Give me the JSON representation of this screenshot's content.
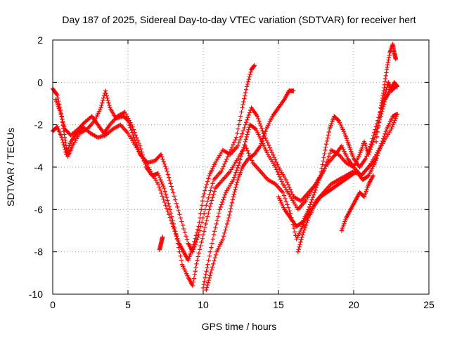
{
  "chart_data": {
    "type": "scatter",
    "title": "Day 187 of 2025, Sidereal Day-to-day VTEC variation (SDTVAR) for receiver hert",
    "xlabel": "GPS time / hours",
    "ylabel": "SDTVAR / TECUs",
    "xlim": [
      0,
      25
    ],
    "ylim": [
      -10,
      2
    ],
    "xticks": [
      0,
      5,
      10,
      15,
      20,
      25
    ],
    "yticks": [
      2,
      0,
      -2,
      -4,
      -6,
      -8,
      -10
    ],
    "grid": true,
    "marker": "+",
    "color": "#ff0000",
    "series": [
      {
        "points": [
          [
            0.0,
            -2.3
          ],
          [
            0.3,
            -2.1
          ],
          [
            0.6,
            -2.6
          ],
          [
            0.9,
            -3.4
          ],
          [
            1.2,
            -2.8
          ],
          [
            1.6,
            -2.4
          ],
          [
            2.0,
            -2.1
          ],
          [
            2.5,
            -2.4
          ],
          [
            3.0,
            -2.6
          ],
          [
            3.5,
            -2.5
          ],
          [
            4.0,
            -2.2
          ],
          [
            4.5,
            -2.0
          ],
          [
            5.0,
            -2.4
          ],
          [
            5.5,
            -3.0
          ],
          [
            6.0,
            -3.6
          ],
          [
            6.5,
            -4.2
          ],
          [
            7.0,
            -4.8
          ],
          [
            7.5,
            -5.8
          ],
          [
            8.0,
            -6.8
          ],
          [
            8.4,
            -7.6
          ],
          [
            8.7,
            -8.0
          ],
          [
            9.0,
            -8.4
          ],
          [
            9.3,
            -7.8
          ],
          [
            9.7,
            -6.8
          ],
          [
            10.0,
            -5.4
          ],
          [
            10.4,
            -4.4
          ],
          [
            10.8,
            -3.8
          ],
          [
            11.3,
            -3.2
          ],
          [
            11.8,
            -3.4
          ],
          [
            12.3,
            -3.0
          ],
          [
            12.8,
            -2.0
          ],
          [
            13.2,
            -1.2
          ],
          [
            13.6,
            -1.6
          ],
          [
            14.0,
            -2.4
          ],
          [
            14.5,
            -3.2
          ],
          [
            15.0,
            -4.0
          ],
          [
            15.5,
            -4.6
          ],
          [
            16.0,
            -5.4
          ],
          [
            16.5,
            -5.6
          ],
          [
            17.0,
            -5.2
          ],
          [
            17.5,
            -4.8
          ],
          [
            18.0,
            -4.2
          ],
          [
            18.5,
            -3.2
          ],
          [
            19.0,
            -3.4
          ],
          [
            19.5,
            -3.8
          ],
          [
            20.0,
            -4.0
          ],
          [
            20.5,
            -4.4
          ],
          [
            21.0,
            -4.0
          ],
          [
            21.5,
            -3.4
          ],
          [
            22.0,
            -2.8
          ],
          [
            22.5,
            -2.2
          ],
          [
            22.9,
            -1.5
          ]
        ]
      },
      {
        "points": [
          [
            0.0,
            -0.3
          ],
          [
            0.3,
            -0.6
          ],
          [
            0.6,
            -1.6
          ],
          [
            0.8,
            -2.6
          ],
          [
            1.0,
            -3.5
          ],
          [
            1.3,
            -3.0
          ],
          [
            1.8,
            -2.4
          ],
          [
            2.3,
            -2.2
          ],
          [
            2.8,
            -1.8
          ],
          [
            3.2,
            -1.2
          ],
          [
            3.5,
            -0.4
          ],
          [
            3.8,
            -1.2
          ],
          [
            4.2,
            -1.7
          ],
          [
            4.7,
            -1.6
          ],
          [
            5.0,
            -1.8
          ],
          [
            5.4,
            -2.6
          ],
          [
            5.8,
            -3.4
          ],
          [
            6.3,
            -3.8
          ],
          [
            6.8,
            -3.7
          ],
          [
            7.2,
            -3.4
          ],
          [
            7.6,
            -4.2
          ],
          [
            8.0,
            -5.2
          ],
          [
            8.5,
            -6.4
          ],
          [
            9.0,
            -7.6
          ],
          [
            9.3,
            -8.0
          ],
          [
            9.7,
            -7.2
          ],
          [
            10.2,
            -5.8
          ],
          [
            10.7,
            -4.6
          ],
          [
            11.2,
            -4.2
          ],
          [
            11.7,
            -3.4
          ],
          [
            12.2,
            -2.6
          ],
          [
            12.6,
            -1.2
          ],
          [
            12.9,
            -0.2
          ],
          [
            13.2,
            0.6
          ],
          [
            13.4,
            0.8
          ]
        ]
      },
      {
        "points": [
          [
            15.0,
            -5.4
          ],
          [
            15.4,
            -6.0
          ],
          [
            15.8,
            -6.4
          ],
          [
            16.2,
            -6.8
          ],
          [
            16.6,
            -6.6
          ],
          [
            17.0,
            -6.0
          ],
          [
            17.4,
            -5.2
          ],
          [
            17.8,
            -4.4
          ],
          [
            18.1,
            -3.2
          ],
          [
            18.4,
            -2.2
          ],
          [
            18.7,
            -1.6
          ],
          [
            19.0,
            -1.8
          ],
          [
            19.4,
            -2.4
          ],
          [
            19.7,
            -3.0
          ],
          [
            20.0,
            -3.6
          ],
          [
            20.4,
            -4.0
          ],
          [
            20.8,
            -3.6
          ],
          [
            21.2,
            -2.8
          ],
          [
            21.6,
            -1.8
          ],
          [
            22.0,
            -0.8
          ],
          [
            22.3,
            0.0
          ],
          [
            22.5,
            -0.4
          ],
          [
            22.8,
            -0.2
          ]
        ]
      },
      {
        "points": [
          [
            0.2,
            -0.8
          ],
          [
            0.5,
            -1.4
          ],
          [
            0.8,
            -2.2
          ],
          [
            1.2,
            -2.5
          ],
          [
            1.7,
            -2.2
          ],
          [
            2.1,
            -1.9
          ],
          [
            2.6,
            -1.6
          ],
          [
            3.0,
            -2.0
          ],
          [
            3.4,
            -2.4
          ],
          [
            3.8,
            -2.0
          ],
          [
            4.3,
            -1.6
          ],
          [
            4.8,
            -1.4
          ],
          [
            5.3,
            -2.1
          ],
          [
            5.8,
            -3.0
          ],
          [
            6.2,
            -4.0
          ],
          [
            6.6,
            -4.4
          ],
          [
            7.0,
            -4.3
          ],
          [
            7.4,
            -5.0
          ],
          [
            7.8,
            -6.0
          ],
          [
            8.2,
            -7.2
          ],
          [
            8.6,
            -8.6
          ],
          [
            9.0,
            -9.2
          ],
          [
            9.3,
            -9.6
          ],
          [
            9.6,
            -8.4
          ],
          [
            10.0,
            -7.2
          ],
          [
            10.4,
            -6.0
          ],
          [
            10.8,
            -5.0
          ],
          [
            11.3,
            -4.6
          ],
          [
            11.8,
            -4.2
          ],
          [
            12.3,
            -3.6
          ],
          [
            12.8,
            -3.0
          ],
          [
            13.3,
            -3.8
          ],
          [
            13.8,
            -4.2
          ],
          [
            14.3,
            -4.6
          ],
          [
            14.8,
            -4.8
          ],
          [
            15.3,
            -5.2
          ],
          [
            15.8,
            -6.2
          ],
          [
            16.2,
            -7.4
          ],
          [
            16.6,
            -6.8
          ],
          [
            17.0,
            -6.2
          ],
          [
            17.5,
            -5.6
          ],
          [
            18.0,
            -5.2
          ],
          [
            18.5,
            -4.8
          ],
          [
            19.0,
            -4.6
          ],
          [
            19.5,
            -4.4
          ],
          [
            20.0,
            -4.2
          ],
          [
            20.5,
            -4.4
          ],
          [
            21.0,
            -4.0
          ],
          [
            21.5,
            -3.6
          ]
        ]
      },
      {
        "points": [
          [
            10.0,
            -9.7
          ],
          [
            10.3,
            -8.6
          ],
          [
            10.7,
            -7.2
          ],
          [
            11.1,
            -6.0
          ],
          [
            11.5,
            -5.2
          ],
          [
            12.0,
            -4.6
          ],
          [
            12.4,
            -3.8
          ],
          [
            12.8,
            -2.8
          ],
          [
            13.1,
            -2.0
          ],
          [
            13.5,
            -2.2
          ],
          [
            13.9,
            -2.8
          ],
          [
            14.3,
            -3.4
          ],
          [
            14.8,
            -4.0
          ],
          [
            15.3,
            -4.8
          ],
          [
            15.8,
            -5.4
          ],
          [
            16.3,
            -6.0
          ],
          [
            16.8,
            -5.6
          ],
          [
            17.3,
            -5.0
          ],
          [
            17.8,
            -4.4
          ],
          [
            18.3,
            -3.8
          ],
          [
            18.8,
            -3.4
          ],
          [
            19.2,
            -3.0
          ],
          [
            19.6,
            -3.6
          ],
          [
            20.0,
            -4.0
          ],
          [
            20.4,
            -3.4
          ],
          [
            20.7,
            -2.8
          ],
          [
            21.0,
            -3.4
          ],
          [
            21.4,
            -2.6
          ],
          [
            21.8,
            -1.6
          ],
          [
            22.1,
            -0.8
          ],
          [
            22.4,
            -0.4
          ],
          [
            22.7,
            0.0
          ],
          [
            22.9,
            -0.2
          ]
        ]
      },
      {
        "points": [
          [
            16.3,
            -8.0
          ],
          [
            16.6,
            -7.2
          ],
          [
            17.0,
            -6.4
          ],
          [
            17.4,
            -5.8
          ],
          [
            17.8,
            -5.4
          ],
          [
            18.2,
            -5.2
          ],
          [
            18.6,
            -5.0
          ],
          [
            19.0,
            -4.8
          ],
          [
            19.4,
            -4.6
          ],
          [
            19.8,
            -4.4
          ],
          [
            20.2,
            -4.2
          ],
          [
            20.6,
            -4.6
          ],
          [
            21.0,
            -4.4
          ],
          [
            21.4,
            -3.8
          ],
          [
            21.8,
            -3.0
          ],
          [
            22.2,
            -2.2
          ],
          [
            22.6,
            -1.6
          ],
          [
            22.9,
            -1.5
          ]
        ]
      },
      {
        "points": [
          [
            10.2,
            -9.8
          ],
          [
            10.5,
            -9.0
          ],
          [
            10.9,
            -8.0
          ],
          [
            11.3,
            -7.4
          ],
          [
            11.7,
            -6.4
          ],
          [
            12.0,
            -5.4
          ],
          [
            12.3,
            -4.6
          ],
          [
            12.6,
            -4.0
          ],
          [
            13.0,
            -3.6
          ],
          [
            13.4,
            -3.4
          ],
          [
            13.8,
            -3.0
          ],
          [
            14.2,
            -2.2
          ],
          [
            14.6,
            -1.6
          ],
          [
            15.0,
            -1.2
          ],
          [
            15.4,
            -0.8
          ],
          [
            15.7,
            -0.4
          ],
          [
            16.0,
            -0.4
          ]
        ]
      },
      {
        "points": [
          [
            19.2,
            -7.0
          ],
          [
            19.5,
            -6.4
          ],
          [
            19.8,
            -6.0
          ],
          [
            20.1,
            -5.6
          ],
          [
            20.4,
            -5.2
          ],
          [
            20.7,
            -5.4
          ],
          [
            21.0,
            -4.8
          ],
          [
            21.3,
            -4.4
          ]
        ]
      },
      {
        "points": [
          [
            21.5,
            -2.8
          ],
          [
            21.8,
            -1.2
          ],
          [
            22.0,
            -0.4
          ],
          [
            22.2,
            0.6
          ],
          [
            22.4,
            1.4
          ],
          [
            22.6,
            1.8
          ],
          [
            22.7,
            1.4
          ],
          [
            22.8,
            1.1
          ]
        ]
      },
      {
        "points": [
          [
            7.1,
            -7.9
          ],
          [
            7.2,
            -7.6
          ],
          [
            7.3,
            -7.3
          ]
        ]
      }
    ]
  }
}
